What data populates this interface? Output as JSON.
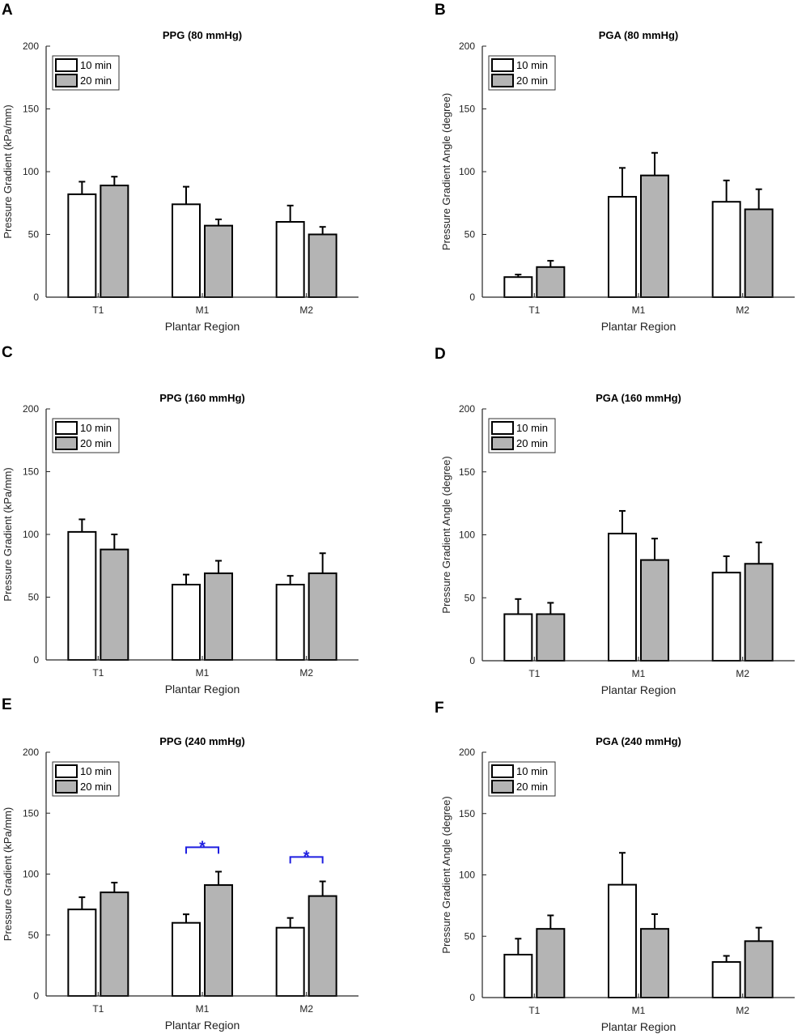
{
  "figure": {
    "colors": {
      "white_bar": "#ffffff",
      "grey_bar": "#b4b4b4",
      "axis": "#262626",
      "significance": "#1f1fe0"
    }
  },
  "chart_data": [
    {
      "panel": "A",
      "type": "bar",
      "title": "PPG (80 mmHg)",
      "categories": [
        "T1",
        "M1",
        "M2"
      ],
      "xlabel": "Plantar Region",
      "ylabel": "Pressure Gradient (kPa/mm)",
      "ylim": [
        0,
        200
      ],
      "yticks": [
        "0",
        "50",
        "100",
        "150",
        "200"
      ],
      "series": [
        {
          "name": "10 min",
          "values": [
            82,
            74,
            60
          ],
          "errors": [
            10,
            14,
            13
          ]
        },
        {
          "name": "20 min",
          "values": [
            89,
            57,
            50
          ],
          "errors": [
            7,
            5,
            6
          ]
        }
      ],
      "legend": "top-left",
      "significance": []
    },
    {
      "panel": "B",
      "type": "bar",
      "title": "PGA (80 mmHg)",
      "categories": [
        "T1",
        "M1",
        "M2"
      ],
      "xlabel": "Plantar Region",
      "ylabel": "Pressure Gradient Angle (degree)",
      "ylim": [
        0,
        200
      ],
      "yticks": [
        "0",
        "50",
        "100",
        "150",
        "200"
      ],
      "series": [
        {
          "name": "10 min",
          "values": [
            16,
            80,
            76
          ],
          "errors": [
            2,
            23,
            17
          ]
        },
        {
          "name": "20 min",
          "values": [
            24,
            97,
            70
          ],
          "errors": [
            5,
            18,
            16
          ]
        }
      ],
      "legend": "top-left",
      "significance": []
    },
    {
      "panel": "C",
      "type": "bar",
      "title": "PPG (160 mmHg)",
      "categories": [
        "T1",
        "M1",
        "M2"
      ],
      "xlabel": "Plantar Region",
      "ylabel": "Pressure Gradient (kPa/mm)",
      "ylim": [
        0,
        200
      ],
      "yticks": [
        "0",
        "50",
        "100",
        "150",
        "200"
      ],
      "series": [
        {
          "name": "10 min",
          "values": [
            102,
            60,
            60
          ],
          "errors": [
            10,
            8,
            7
          ]
        },
        {
          "name": "20 min",
          "values": [
            88,
            69,
            69
          ],
          "errors": [
            12,
            10,
            16
          ]
        }
      ],
      "legend": "top-left",
      "significance": []
    },
    {
      "panel": "D",
      "type": "bar",
      "title": "PGA (160 mmHg)",
      "categories": [
        "T1",
        "M1",
        "M2"
      ],
      "xlabel": "Plantar Region",
      "ylabel": "Pressure Gradient Angle (degree)",
      "ylim": [
        0,
        200
      ],
      "yticks": [
        "0",
        "50",
        "100",
        "150",
        "200"
      ],
      "series": [
        {
          "name": "10 min",
          "values": [
            37,
            101,
            70
          ],
          "errors": [
            12,
            18,
            13
          ]
        },
        {
          "name": "20 min",
          "values": [
            37,
            80,
            77
          ],
          "errors": [
            9,
            17,
            17
          ]
        }
      ],
      "legend": "top-left",
      "significance": []
    },
    {
      "panel": "E",
      "type": "bar",
      "title": "PPG (240 mmHg)",
      "categories": [
        "T1",
        "M1",
        "M2"
      ],
      "xlabel": "Plantar Region",
      "ylabel": "Pressure Gradient (kPa/mm)",
      "ylim": [
        0,
        200
      ],
      "yticks": [
        "0",
        "50",
        "100",
        "150",
        "200"
      ],
      "series": [
        {
          "name": "10 min",
          "values": [
            71,
            60,
            56
          ],
          "errors": [
            10,
            7,
            8
          ]
        },
        {
          "name": "20 min",
          "values": [
            85,
            91,
            82
          ],
          "errors": [
            8,
            11,
            12
          ]
        }
      ],
      "legend": "top-left",
      "significance": [
        {
          "category_index": 1,
          "y": 122,
          "label": "*"
        },
        {
          "category_index": 2,
          "y": 114,
          "label": "*"
        }
      ]
    },
    {
      "panel": "F",
      "type": "bar",
      "title": "PGA (240 mmHg)",
      "categories": [
        "T1",
        "M1",
        "M2"
      ],
      "xlabel": "Plantar Region",
      "ylabel": "Pressure Gradient Angle (degree)",
      "ylim": [
        0,
        200
      ],
      "yticks": [
        "0",
        "50",
        "100",
        "150",
        "200"
      ],
      "series": [
        {
          "name": "10 min",
          "values": [
            35,
            92,
            29
          ],
          "errors": [
            13,
            26,
            5
          ]
        },
        {
          "name": "20 min",
          "values": [
            56,
            56,
            46
          ],
          "errors": [
            11,
            12,
            11
          ]
        }
      ],
      "legend": "top-left",
      "significance": []
    }
  ]
}
